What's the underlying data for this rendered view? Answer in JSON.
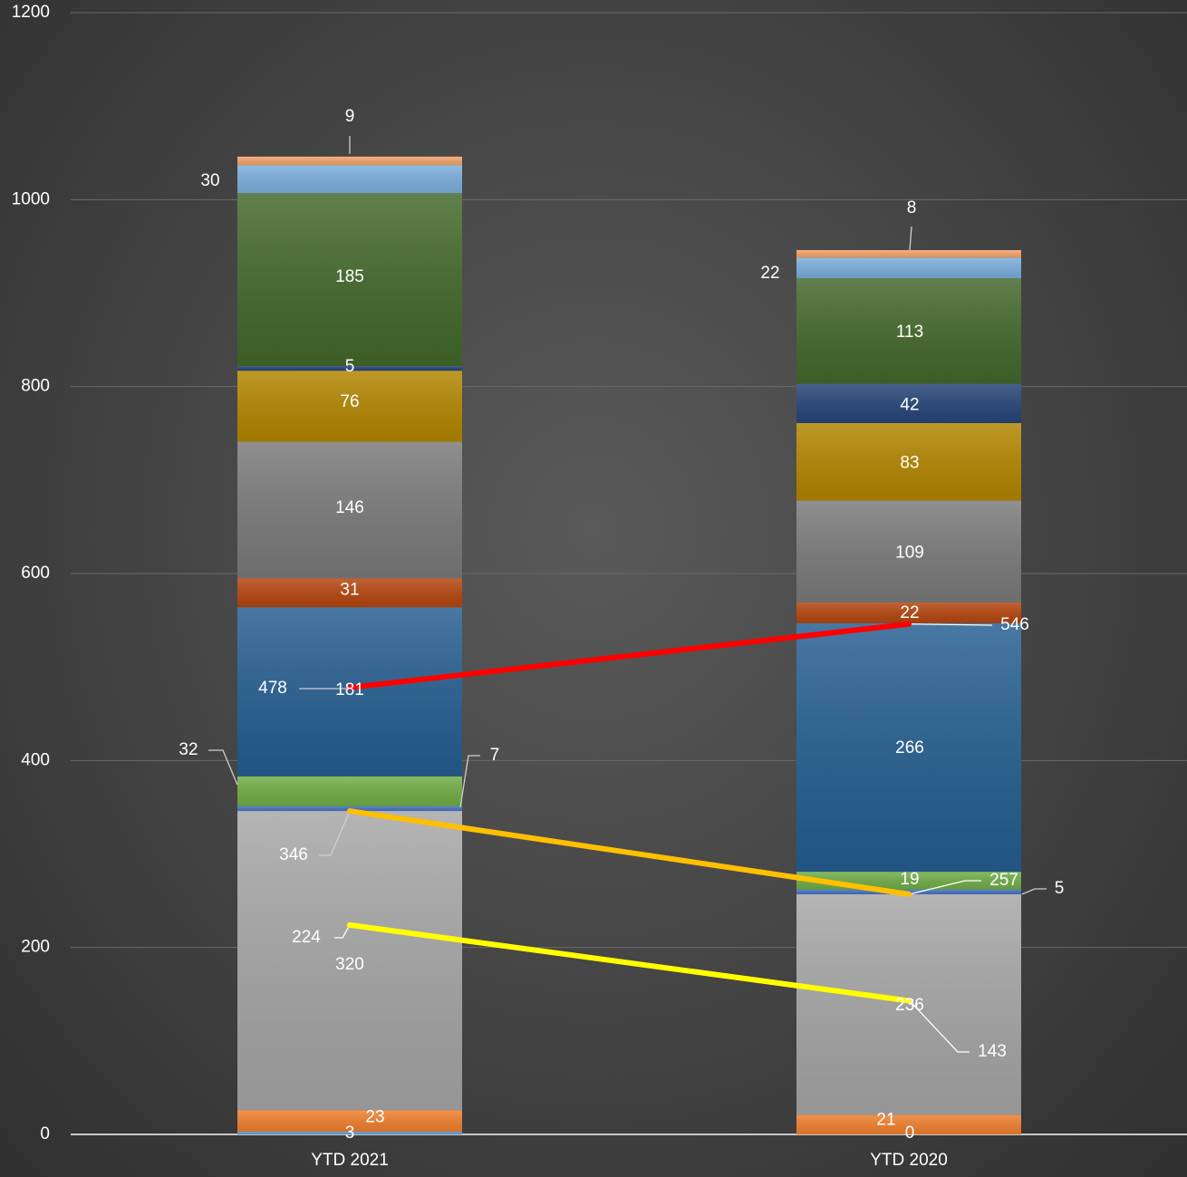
{
  "chart_data": {
    "type": "bar",
    "stacked": true,
    "title": "",
    "categories": [
      "YTD 2021",
      "YTD 2020"
    ],
    "ylim": [
      0,
      1200
    ],
    "yticks": [
      0,
      200,
      400,
      600,
      800,
      1000,
      1200
    ],
    "grid": true,
    "legend": "none",
    "series": [
      {
        "values": [
          3,
          0
        ],
        "color": "#5b9bd5",
        "labels": [
          "3",
          "0"
        ]
      },
      {
        "values": [
          23,
          21
        ],
        "color": "#f07f2d",
        "labels": [
          "23",
          "21"
        ]
      },
      {
        "values": [
          320,
          236
        ],
        "color": "#a6a6a6",
        "labels": [
          "320",
          "236"
        ]
      },
      {
        "values": [
          5,
          5
        ],
        "color": "#4472c4",
        "labels": [
          "",
          "5"
        ]
      },
      {
        "values": [
          32,
          19
        ],
        "color": "#70ad47",
        "labels": [
          "32",
          "19"
        ]
      },
      {
        "values": [
          181,
          266
        ],
        "color": "#255e91",
        "labels": [
          "181",
          "266"
        ]
      },
      {
        "values": [
          31,
          22
        ],
        "color": "#b6450e",
        "labels": [
          "31",
          "22"
        ]
      },
      {
        "values": [
          146,
          109
        ],
        "color": "#7a7a7a",
        "labels": [
          "146",
          "109"
        ]
      },
      {
        "values": [
          76,
          83
        ],
        "color": "#b38600",
        "labels": [
          "76",
          "83"
        ]
      },
      {
        "values": [
          5,
          42
        ],
        "color": "#264478",
        "labels": [
          "5",
          "42"
        ]
      },
      {
        "values": [
          185,
          113
        ],
        "color": "#43682b",
        "labels": [
          "185",
          "113"
        ]
      },
      {
        "values": [
          30,
          22
        ],
        "color": "#7cafdd",
        "labels": [
          "30",
          "22"
        ]
      },
      {
        "values": [
          9,
          8
        ],
        "color": "#f4a468",
        "labels": [
          "9",
          "8"
        ]
      }
    ],
    "extra_labels": [
      "7"
    ],
    "trend_lines": [
      {
        "color": "#ff0000",
        "values": [
          478,
          546
        ],
        "labels": [
          "478",
          "546"
        ]
      },
      {
        "color": "#ffc000",
        "values": [
          346,
          257
        ],
        "labels": [
          "346",
          "257"
        ]
      },
      {
        "color": "#ffff00",
        "values": [
          224,
          143
        ],
        "labels": [
          "224",
          "143"
        ]
      }
    ]
  }
}
